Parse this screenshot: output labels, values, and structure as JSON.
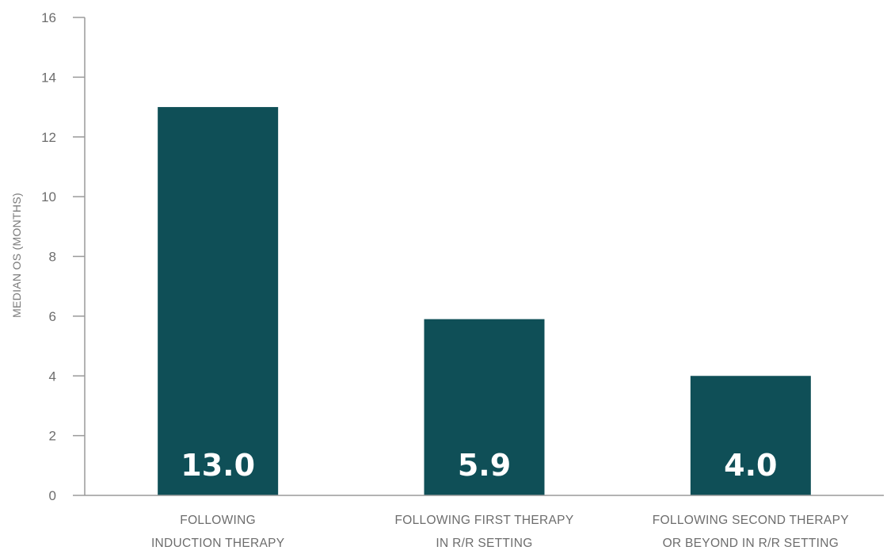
{
  "chart_data": {
    "type": "bar",
    "categories": [
      [
        "FOLLOWING",
        "INDUCTION THERAPY"
      ],
      [
        "FOLLOWING FIRST THERAPY",
        "IN R/R SETTING"
      ],
      [
        "FOLLOWING SECOND THERAPY",
        "OR BEYOND IN R/R SETTING"
      ]
    ],
    "values": [
      13.0,
      5.9,
      4.0
    ],
    "value_labels": [
      "13.0",
      "5.9",
      "4.0"
    ],
    "title": "",
    "xlabel": "",
    "ylabel": "MEDIAN OS (MONTHS)",
    "ylim": [
      0,
      16
    ],
    "yticks": [
      0,
      2,
      4,
      6,
      8,
      10,
      12,
      14,
      16
    ],
    "grid": false,
    "bar_color": "#0f4f57",
    "value_label_color": "#ffffff"
  }
}
